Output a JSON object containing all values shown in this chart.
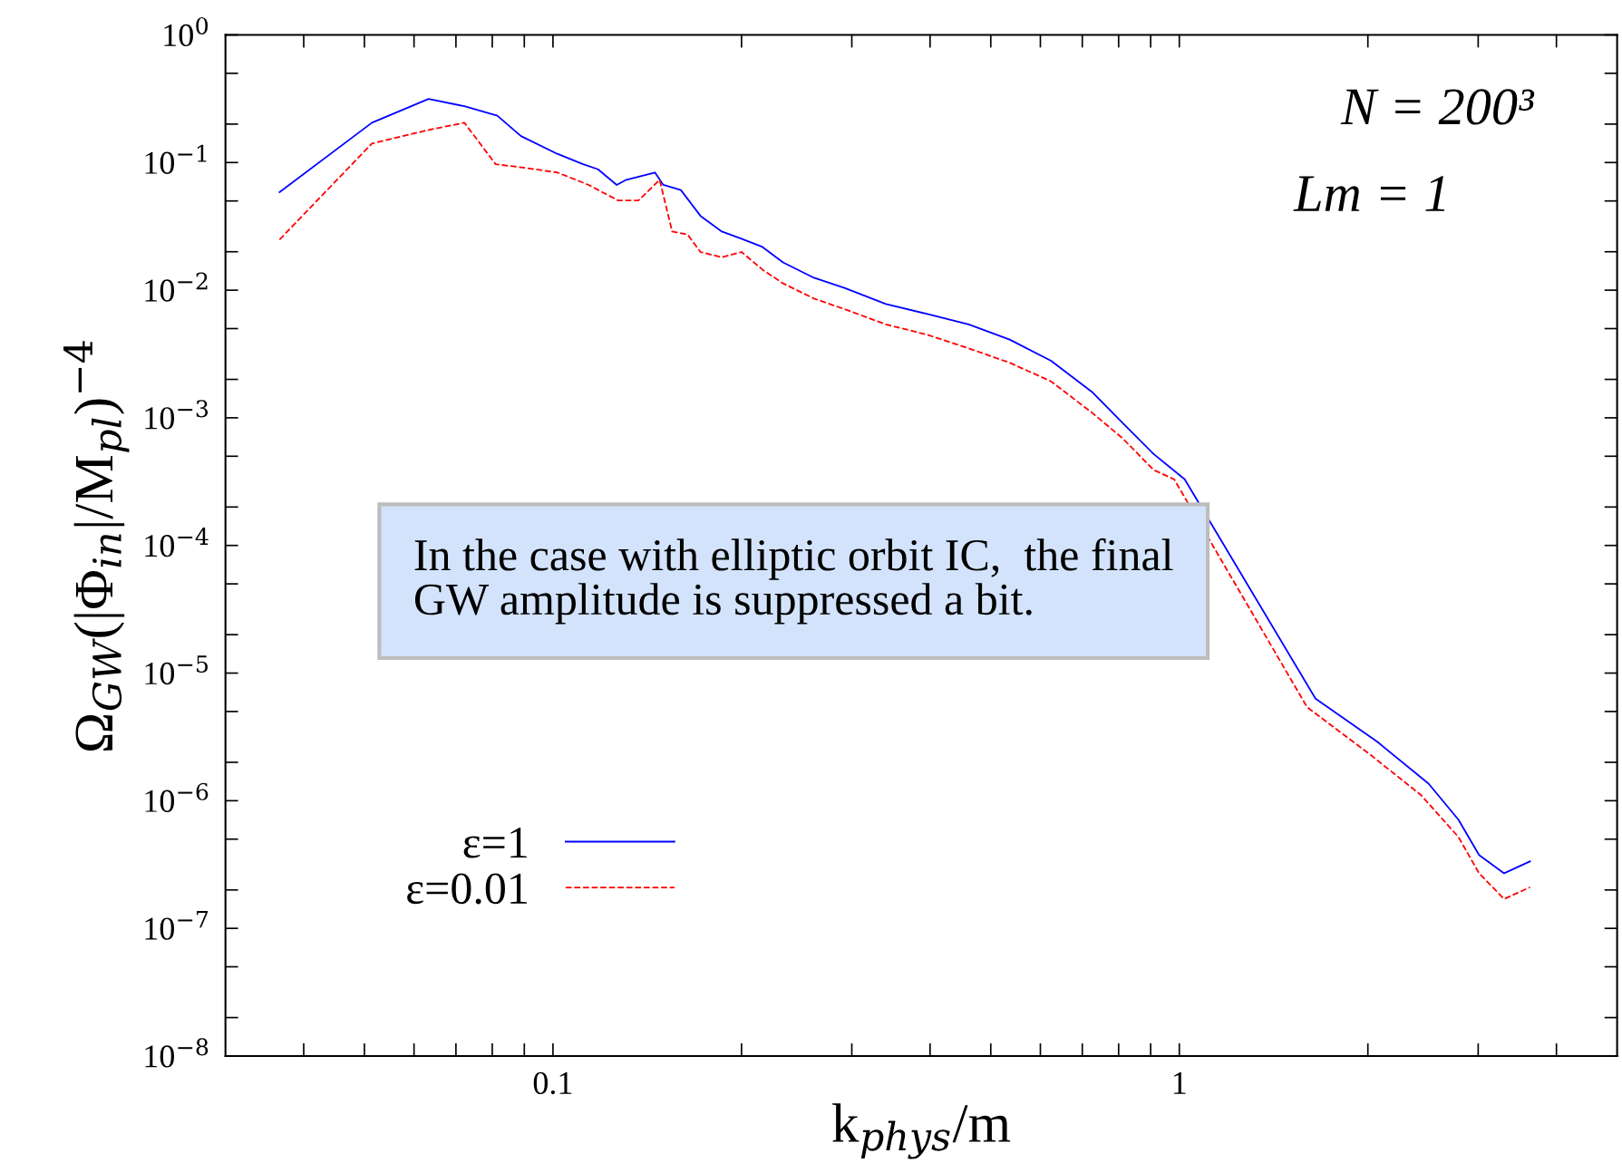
{
  "chart_data": {
    "type": "line",
    "xlabel": "k$_{phys}$/m",
    "ylabel": "Ω$_{GW}$(|Φ$_{in}$|/M$_{pl}$)$^{−4}$",
    "log": "xy",
    "grid": false,
    "legend": "bottom left",
    "xlim": [
      0.03,
      5
    ],
    "ylim": [
      1e-08,
      1
    ],
    "xticks": [
      {
        "value": 0.04,
        "label": null
      },
      {
        "value": 0.05,
        "label": null
      },
      {
        "value": 0.06,
        "label": null
      },
      {
        "value": 0.07,
        "label": null
      },
      {
        "value": 0.08,
        "label": null
      },
      {
        "value": 0.09,
        "label": null
      },
      0.1,
      {
        "value": 0.2,
        "label": null
      },
      {
        "value": 0.3,
        "label": null
      },
      {
        "value": 0.4,
        "label": null
      },
      {
        "value": 0.5,
        "label": null
      },
      {
        "value": 0.6,
        "label": null
      },
      {
        "value": 0.7,
        "label": null
      },
      {
        "value": 0.8,
        "label": null
      },
      {
        "value": 0.9,
        "label": null
      },
      1,
      {
        "value": 2,
        "label": null
      },
      {
        "value": 3,
        "label": null
      },
      {
        "value": 4,
        "label": null
      }
    ],
    "yticks": [
      {
        "value": 1e-08,
        "label": "10$^{−8}$"
      },
      {
        "value": 2e-08,
        "label": null
      },
      {
        "value": 5e-08,
        "label": null
      },
      {
        "value": 1e-07,
        "label": "10$^{−7}$"
      },
      {
        "value": 2e-07,
        "label": null
      },
      {
        "value": 5e-07,
        "label": null
      },
      {
        "value": 1e-06,
        "label": "10$^{−6}$"
      },
      {
        "value": 2e-06,
        "label": null
      },
      {
        "value": 5e-06,
        "label": null
      },
      {
        "value": 1e-05,
        "label": "10$^{−5}$"
      },
      {
        "value": 2e-05,
        "label": null
      },
      {
        "value": 5e-05,
        "label": null
      },
      {
        "value": 0.0001,
        "label": "10$^{−4}$"
      },
      {
        "value": 0.0002,
        "label": null
      },
      {
        "value": 0.0005,
        "label": null
      },
      {
        "value": 0.001,
        "label": "10$^{−3}$"
      },
      {
        "value": 0.002,
        "label": null
      },
      {
        "value": 0.005,
        "label": null
      },
      {
        "value": 0.01,
        "label": "10$^{−2}$"
      },
      {
        "value": 0.02,
        "label": null
      },
      {
        "value": 0.05,
        "label": null
      },
      {
        "value": 0.1,
        "label": "10$^{−1}$"
      },
      {
        "value": 0.2,
        "label": null
      },
      {
        "value": 0.5,
        "label": null
      },
      {
        "value": 1,
        "label": "10$^{0}$"
      }
    ],
    "series": [
      {
        "name": "ε=1",
        "color": "#0000ff",
        "line_style": "solid",
        "x": [
          0.0366,
          0.0514,
          0.0633,
          0.0722,
          0.0815,
          0.0889,
          0.1016,
          0.1117,
          0.118,
          0.1264,
          0.131,
          0.1455,
          0.15,
          0.16,
          0.172,
          0.186,
          0.2,
          0.216,
          0.233,
          0.261,
          0.292,
          0.34,
          0.396,
          0.461,
          0.536,
          0.624,
          0.725,
          0.812,
          0.91,
          1.02,
          1.65,
          2.07,
          2.5,
          2.79,
          3.01,
          3.3,
          3.63
        ],
        "values": [
          0.0586,
          0.205,
          0.315,
          0.276,
          0.233,
          0.161,
          0.117,
          0.097,
          0.0885,
          0.0668,
          0.0733,
          0.0836,
          0.0668,
          0.0609,
          0.0382,
          0.0288,
          0.0253,
          0.0218,
          0.0165,
          0.0125,
          0.0104,
          0.0078,
          0.0065,
          0.0054,
          0.0041,
          0.0028,
          0.0016,
          0.00091,
          0.00052,
          0.00033,
          6.3e-06,
          2.9e-06,
          1.36e-06,
          7.1e-07,
          3.75e-07,
          2.7e-07,
          3.35e-07
        ]
      },
      {
        "name": "ε=0.01",
        "color": "#ff0000",
        "line_style": "dashed",
        "x": [
          0.0366,
          0.0514,
          0.0633,
          0.0722,
          0.081,
          0.0889,
          0.1016,
          0.114,
          0.127,
          0.137,
          0.148,
          0.155,
          0.164,
          0.172,
          0.186,
          0.2,
          0.216,
          0.233,
          0.261,
          0.292,
          0.34,
          0.396,
          0.461,
          0.536,
          0.624,
          0.725,
          0.812,
          0.91,
          0.981,
          1.6,
          2.01,
          2.43,
          2.79,
          3.01,
          3.3,
          3.63
        ],
        "values": [
          0.0249,
          0.141,
          0.18,
          0.205,
          0.097,
          0.0918,
          0.0836,
          0.0668,
          0.0505,
          0.0505,
          0.0733,
          0.0288,
          0.0273,
          0.0199,
          0.0181,
          0.0199,
          0.0145,
          0.0113,
          0.0086,
          0.0071,
          0.0054,
          0.00447,
          0.0035,
          0.0027,
          0.00193,
          0.0011,
          0.00069,
          0.00039,
          0.00033,
          5.4e-06,
          2.33e-06,
          1.11e-06,
          5.2e-07,
          2.7e-07,
          1.7e-07,
          2.1e-07
        ]
      }
    ],
    "annotations": [
      "N = 200³",
      "Lm = 1",
      "In the case with elliptic orbit IC,  the final\nGW amplitude is suppressed a bit."
    ]
  }
}
